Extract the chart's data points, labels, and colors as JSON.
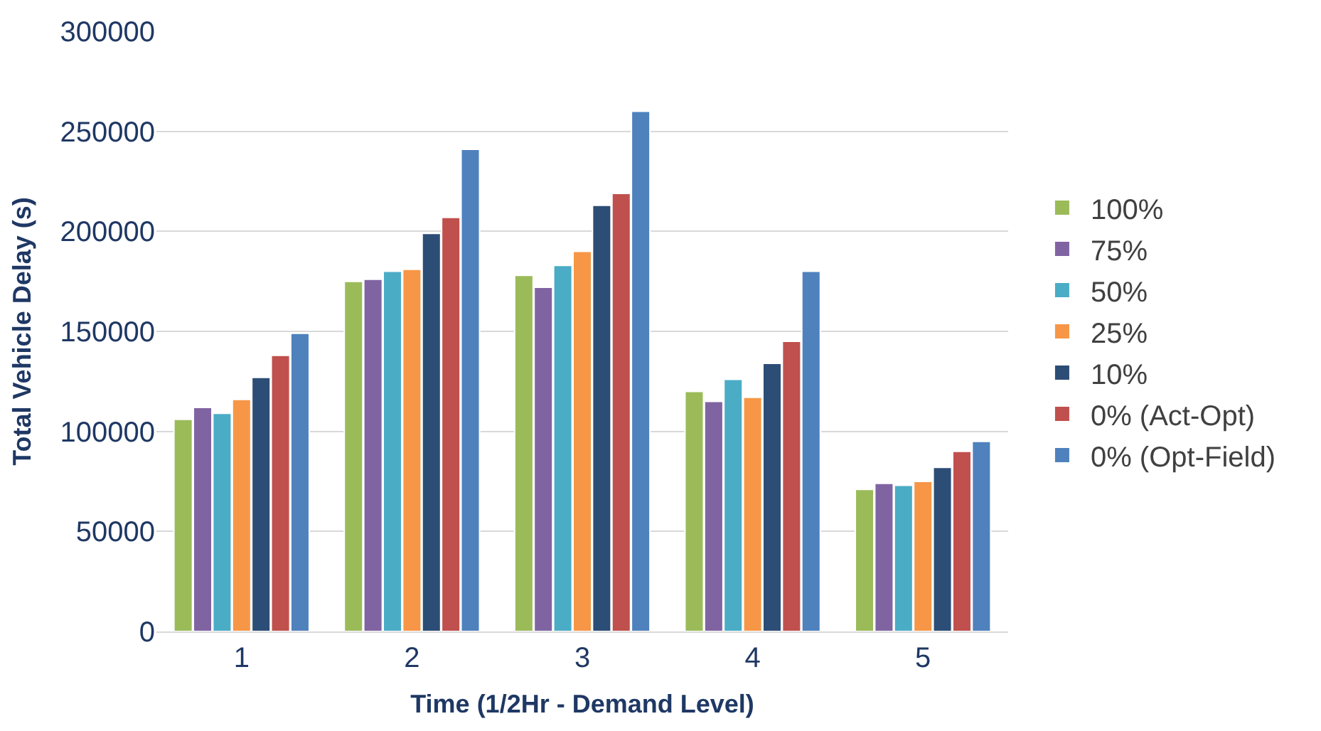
{
  "chart_data": {
    "type": "bar",
    "xlabel": "Time (1/2Hr - Demand Level)",
    "ylabel": "Total Vehicle Delay (s)",
    "categories": [
      "1",
      "2",
      "3",
      "4",
      "5"
    ],
    "series": [
      {
        "name": "100%",
        "color": "#9bbb59",
        "values": [
          106000,
          175000,
          178000,
          120000,
          71000
        ]
      },
      {
        "name": "75%",
        "color": "#8064a2",
        "values": [
          112000,
          176000,
          172000,
          115000,
          74000
        ]
      },
      {
        "name": "50%",
        "color": "#4bacc6",
        "values": [
          109000,
          180000,
          183000,
          126000,
          73000
        ]
      },
      {
        "name": "25%",
        "color": "#f79646",
        "values": [
          116000,
          181000,
          190000,
          117000,
          75000
        ]
      },
      {
        "name": "10%",
        "color": "#2c4d75",
        "values": [
          127000,
          199000,
          213000,
          134000,
          82000
        ]
      },
      {
        "name": "0% (Act-Opt)",
        "color": "#c0504d",
        "values": [
          138000,
          207000,
          219000,
          145000,
          90000
        ]
      },
      {
        "name": "0% (Opt-Field)",
        "color": "#4f81bd",
        "values": [
          149000,
          241000,
          260000,
          180000,
          95000
        ]
      }
    ],
    "ylim": [
      0,
      300000
    ],
    "yticks": [
      0,
      50000,
      100000,
      150000,
      200000,
      250000,
      300000
    ],
    "grid": "y",
    "legend": "right"
  }
}
